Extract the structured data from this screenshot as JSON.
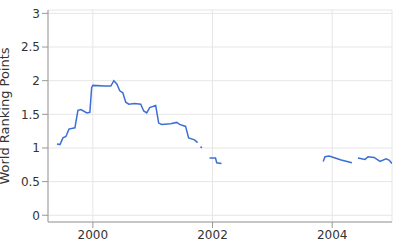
{
  "chart_data": {
    "type": "line",
    "y_label": "World Ranking Points",
    "x": [
      1999.4,
      1999.45,
      1999.5,
      1999.55,
      1999.6,
      1999.7,
      1999.75,
      1999.8,
      1999.9,
      1999.95,
      1999.98,
      2000.0,
      2000.2,
      2000.3,
      2000.35,
      2000.4,
      2000.45,
      2000.5,
      2000.55,
      2000.6,
      2000.7,
      2000.8,
      2000.85,
      2000.9,
      2000.95,
      2001.05,
      2001.1,
      2001.15,
      2001.3,
      2001.4,
      2001.45,
      2001.55,
      2001.6,
      2001.7,
      2001.75,
      2001.77,
      2001.8,
      2001.82,
      2001.87,
      2001.95,
      2002.05,
      2002.07,
      2002.15,
      2003.0,
      2003.85,
      2003.88,
      2003.95,
      2004.05,
      2004.15,
      2004.25,
      2004.33,
      2004.38,
      2004.43,
      2004.55,
      2004.6,
      2004.7,
      2004.8,
      2004.9,
      2004.95,
      2005.0
    ],
    "values": [
      1.06,
      1.05,
      1.15,
      1.17,
      1.28,
      1.3,
      1.56,
      1.57,
      1.52,
      1.53,
      1.9,
      1.93,
      1.92,
      1.92,
      2.0,
      1.95,
      1.85,
      1.82,
      1.68,
      1.65,
      1.66,
      1.65,
      1.55,
      1.52,
      1.6,
      1.63,
      1.37,
      1.35,
      1.36,
      1.38,
      1.35,
      1.32,
      1.15,
      1.12,
      1.08,
      null,
      1.02,
      1.0,
      null,
      0.85,
      0.85,
      0.78,
      0.77,
      null,
      0.8,
      0.87,
      0.88,
      0.85,
      0.82,
      0.8,
      0.78,
      null,
      0.85,
      0.83,
      0.87,
      0.86,
      0.8,
      0.84,
      0.82,
      0.77
    ],
    "color": "#3c6fd6",
    "xlim": [
      1999.25,
      2005.0
    ],
    "xticks": [
      2000,
      2002,
      2004
    ],
    "ylim": [
      -0.1,
      3.05
    ],
    "yticks": [
      0,
      0.5,
      1,
      1.5,
      2,
      2.5,
      3
    ],
    "grid": true
  }
}
